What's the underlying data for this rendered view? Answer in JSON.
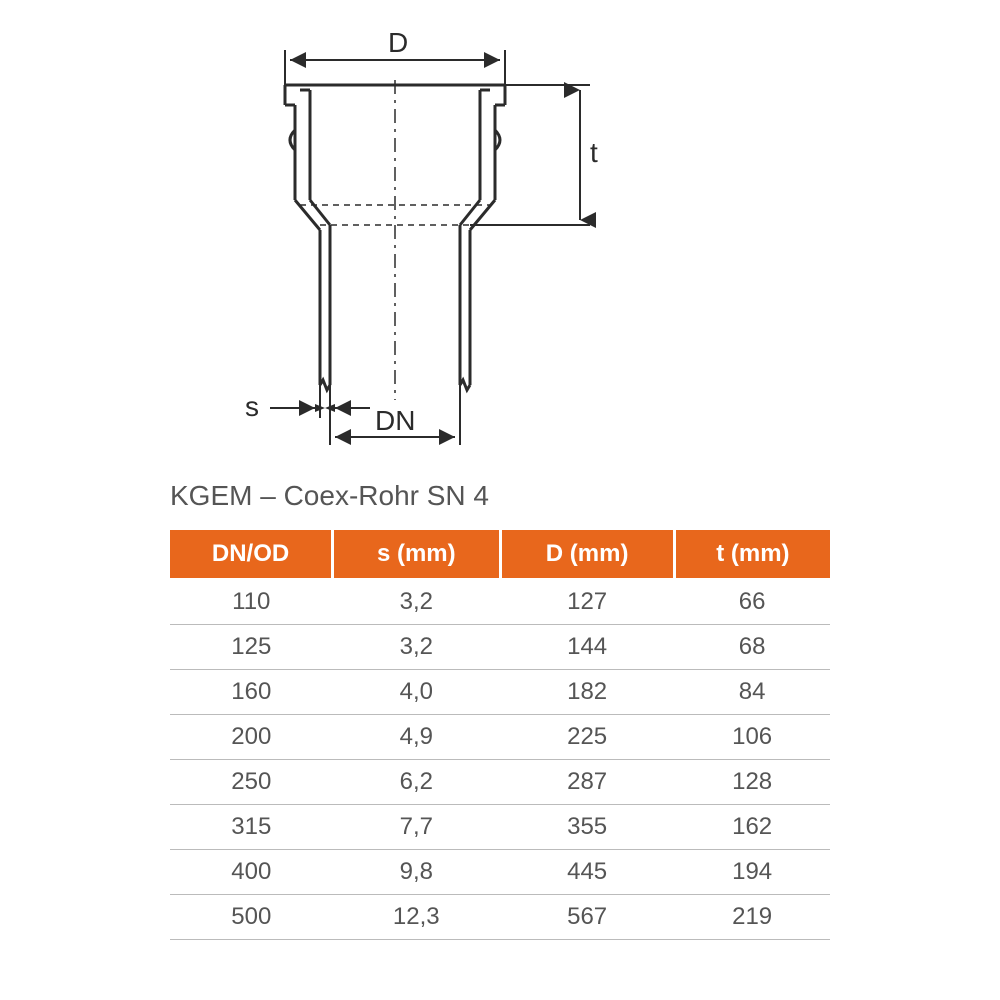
{
  "diagram": {
    "labels": {
      "D": "D",
      "t": "t",
      "s": "s",
      "DN": "DN"
    },
    "stroke": "#2b2b2b",
    "stroke_width_main": 3,
    "stroke_width_dim": 2,
    "arrow_size": 10,
    "font_size": 28
  },
  "title": "KGEM – Coex-Rohr SN 4",
  "table": {
    "header_bg": "#e8671c",
    "header_fg": "#ffffff",
    "row_fg": "#555555",
    "row_border": "#bbbbbb",
    "font_size": 24,
    "columns": [
      "DN/OD",
      "s (mm)",
      "D (mm)",
      "t (mm)"
    ],
    "rows": [
      [
        "110",
        "3,2",
        "127",
        "66"
      ],
      [
        "125",
        "3,2",
        "144",
        "68"
      ],
      [
        "160",
        "4,0",
        "182",
        "84"
      ],
      [
        "200",
        "4,9",
        "225",
        "106"
      ],
      [
        "250",
        "6,2",
        "287",
        "128"
      ],
      [
        "315",
        "7,7",
        "355",
        "162"
      ],
      [
        "400",
        "9,8",
        "445",
        "194"
      ],
      [
        "500",
        "12,3",
        "567",
        "219"
      ]
    ]
  }
}
